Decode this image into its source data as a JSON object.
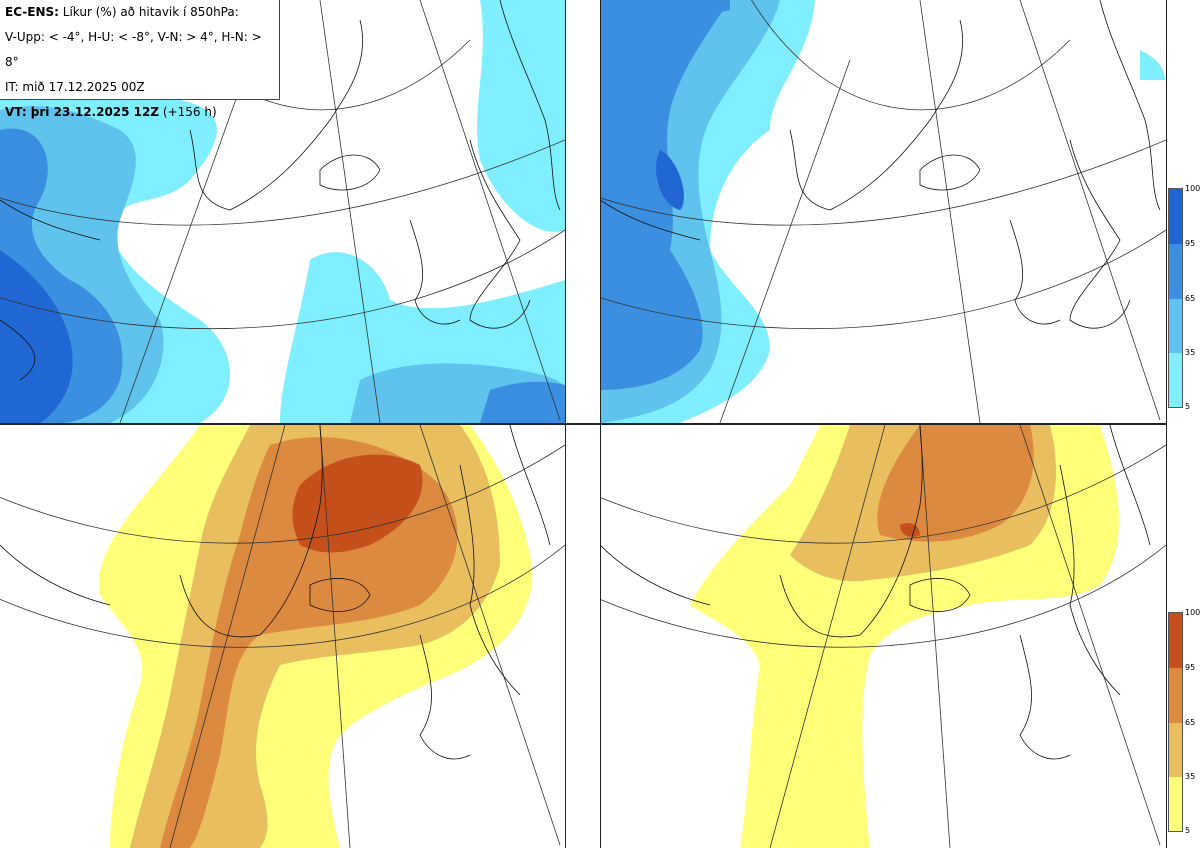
{
  "info": {
    "line1_bold": "EC-ENS:",
    "line1_rest": "Líkur (%) að hitavik í 850hPa:",
    "line2": "V-Upp: < -4°, H-U: < -8°, V-N: > 4°, H-N: > 8°",
    "line3": "IT: mið 17.12.2025 00Z",
    "line4_bold": "VT: þri 23.12.2025 12Z",
    "line4_rest": "(+156 h)"
  },
  "panels": [
    {
      "id": "v-upp",
      "label": "V-Upp",
      "scheme": "cold"
    },
    {
      "id": "h-u",
      "label": "H-U",
      "scheme": "cold"
    },
    {
      "id": "v-n",
      "label": "V-N",
      "scheme": "warm"
    },
    {
      "id": "h-n",
      "label": "H-N",
      "scheme": "warm"
    }
  ],
  "legend": {
    "ticks": [
      "100",
      "95",
      "65",
      "35",
      "5"
    ],
    "cold_colors": [
      "#2067d4",
      "#3a8fe0",
      "#5fc3ee",
      "#7fefff"
    ],
    "warm_colors": [
      "#c6501c",
      "#dc8a40",
      "#e8be5e",
      "#ffff7a"
    ]
  }
}
